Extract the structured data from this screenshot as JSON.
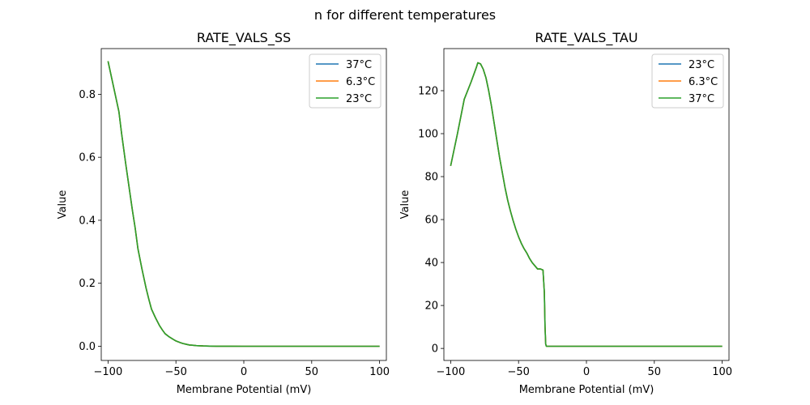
{
  "suptitle": "n for different temperatures",
  "chart_data": [
    {
      "type": "line",
      "title": "RATE_VALS_SS",
      "xlabel": "Membrane Potential (mV)",
      "ylabel": "Value",
      "xlim": [
        -105,
        105
      ],
      "ylim": [
        -0.045,
        0.945
      ],
      "xticks": [
        -100,
        -50,
        0,
        50,
        100
      ],
      "xtick_labels": [
        "−100",
        "−50",
        "0",
        "50",
        "100"
      ],
      "yticks": [
        0.0,
        0.2,
        0.4,
        0.6,
        0.8
      ],
      "ytick_labels": [
        "0.0",
        "0.2",
        "0.4",
        "0.6",
        "0.8"
      ],
      "grid": false,
      "legend_position": "upper right",
      "series": [
        {
          "name": "37°C",
          "color": "#1f77b4",
          "x": [
            -100,
            -92,
            -90,
            -87,
            -85,
            -82,
            -80,
            -78,
            -75,
            -72,
            -70,
            -68,
            -65,
            -62,
            -60,
            -58,
            -55,
            -52,
            -50,
            -47,
            -45,
            -42,
            -40,
            -37,
            -35,
            -30,
            -25,
            -20,
            -10,
            0,
            25,
            50,
            75,
            100
          ],
          "y": [
            0.905,
            0.745,
            0.675,
            0.58,
            0.52,
            0.43,
            0.375,
            0.31,
            0.245,
            0.185,
            0.15,
            0.118,
            0.09,
            0.065,
            0.052,
            0.04,
            0.03,
            0.022,
            0.017,
            0.012,
            0.009,
            0.006,
            0.004,
            0.003,
            0.002,
            0.001,
            0.0005,
            0.0002,
            0.0001,
            0,
            0,
            0,
            0,
            0
          ]
        },
        {
          "name": "6.3°C",
          "color": "#ff7f0e",
          "x": [
            -100,
            -92,
            -90,
            -87,
            -85,
            -82,
            -80,
            -78,
            -75,
            -72,
            -70,
            -68,
            -65,
            -62,
            -60,
            -58,
            -55,
            -52,
            -50,
            -47,
            -45,
            -42,
            -40,
            -37,
            -35,
            -30,
            -25,
            -20,
            -10,
            0,
            25,
            50,
            75,
            100
          ],
          "y": [
            0.905,
            0.745,
            0.675,
            0.58,
            0.52,
            0.43,
            0.375,
            0.31,
            0.245,
            0.185,
            0.15,
            0.118,
            0.09,
            0.065,
            0.052,
            0.04,
            0.03,
            0.022,
            0.017,
            0.012,
            0.009,
            0.006,
            0.004,
            0.003,
            0.002,
            0.001,
            0.0005,
            0.0002,
            0.0001,
            0,
            0,
            0,
            0,
            0
          ]
        },
        {
          "name": "23°C",
          "color": "#2ca02c",
          "x": [
            -100,
            -92,
            -90,
            -87,
            -85,
            -82,
            -80,
            -78,
            -75,
            -72,
            -70,
            -68,
            -65,
            -62,
            -60,
            -58,
            -55,
            -52,
            -50,
            -47,
            -45,
            -42,
            -40,
            -37,
            -35,
            -30,
            -25,
            -20,
            -10,
            0,
            25,
            50,
            75,
            100
          ],
          "y": [
            0.905,
            0.745,
            0.675,
            0.58,
            0.52,
            0.43,
            0.375,
            0.31,
            0.245,
            0.185,
            0.15,
            0.118,
            0.09,
            0.065,
            0.052,
            0.04,
            0.03,
            0.022,
            0.017,
            0.012,
            0.009,
            0.006,
            0.004,
            0.003,
            0.002,
            0.001,
            0.0005,
            0.0002,
            0.0001,
            0,
            0,
            0,
            0,
            0
          ]
        }
      ]
    },
    {
      "type": "line",
      "title": "RATE_VALS_TAU",
      "xlabel": "Membrane Potential (mV)",
      "ylabel": "Value",
      "xlim": [
        -105,
        105
      ],
      "ylim": [
        -5.6,
        139.6
      ],
      "xticks": [
        -100,
        -50,
        0,
        50,
        100
      ],
      "xtick_labels": [
        "−100",
        "−50",
        "0",
        "50",
        "100"
      ],
      "yticks": [
        0,
        20,
        40,
        60,
        80,
        100,
        120
      ],
      "ytick_labels": [
        "0",
        "20",
        "40",
        "60",
        "80",
        "100",
        "120"
      ],
      "grid": false,
      "legend_position": "upper right",
      "series": [
        {
          "name": "23°C",
          "color": "#1f77b4",
          "x": [
            -100,
            -95,
            -90,
            -85,
            -81,
            -80,
            -78,
            -76,
            -74,
            -72,
            -70,
            -68,
            -66,
            -64,
            -62,
            -60,
            -58,
            -56,
            -54,
            -52,
            -50,
            -48,
            -46,
            -44,
            -42,
            -40,
            -38,
            -36,
            -34,
            -32,
            -31,
            -30.5,
            -30,
            -29.5,
            -20,
            0,
            50,
            100
          ],
          "y": [
            85,
            100,
            116,
            124,
            131,
            133,
            132.5,
            130,
            126,
            120,
            113,
            105,
            97,
            89,
            82,
            75,
            69,
            64,
            59.5,
            55.5,
            52,
            49,
            46.5,
            44.5,
            42,
            40,
            38.5,
            37,
            37,
            36.5,
            26,
            10,
            2,
            1,
            1,
            1,
            1,
            1
          ]
        },
        {
          "name": "6.3°C",
          "color": "#ff7f0e",
          "x": [
            -100,
            -95,
            -90,
            -85,
            -81,
            -80,
            -78,
            -76,
            -74,
            -72,
            -70,
            -68,
            -66,
            -64,
            -62,
            -60,
            -58,
            -56,
            -54,
            -52,
            -50,
            -48,
            -46,
            -44,
            -42,
            -40,
            -38,
            -36,
            -34,
            -32,
            -31,
            -30.5,
            -30,
            -29.5,
            -20,
            0,
            50,
            100
          ],
          "y": [
            85,
            100,
            116,
            124,
            131,
            133,
            132.5,
            130,
            126,
            120,
            113,
            105,
            97,
            89,
            82,
            75,
            69,
            64,
            59.5,
            55.5,
            52,
            49,
            46.5,
            44.5,
            42,
            40,
            38.5,
            37,
            37,
            36.5,
            26,
            10,
            2,
            1,
            1,
            1,
            1,
            1
          ]
        },
        {
          "name": "37°C",
          "color": "#2ca02c",
          "x": [
            -100,
            -95,
            -90,
            -85,
            -81,
            -80,
            -78,
            -76,
            -74,
            -72,
            -70,
            -68,
            -66,
            -64,
            -62,
            -60,
            -58,
            -56,
            -54,
            -52,
            -50,
            -48,
            -46,
            -44,
            -42,
            -40,
            -38,
            -36,
            -34,
            -32,
            -31,
            -30.5,
            -30,
            -29.5,
            -20,
            0,
            50,
            100
          ],
          "y": [
            85,
            100,
            116,
            124,
            131,
            133,
            132.5,
            130,
            126,
            120,
            113,
            105,
            97,
            89,
            82,
            75,
            69,
            64,
            59.5,
            55.5,
            52,
            49,
            46.5,
            44.5,
            42,
            40,
            38.5,
            37,
            37,
            36.5,
            26,
            10,
            2,
            1,
            1,
            1,
            1,
            1
          ]
        }
      ]
    }
  ]
}
